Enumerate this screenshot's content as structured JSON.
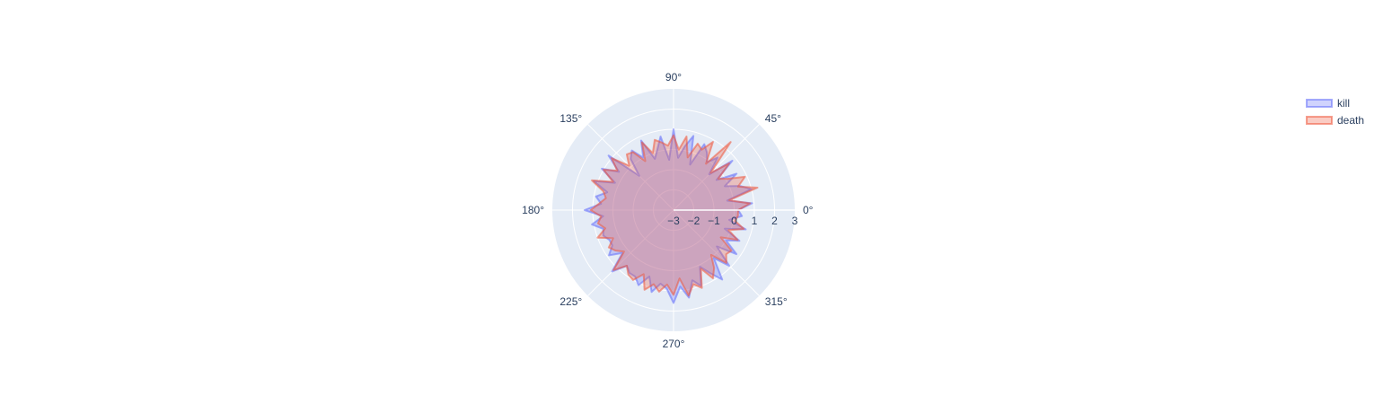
{
  "chart_data": {
    "type": "polar-area",
    "title": "",
    "angular_axis": {
      "tick_labels": [
        "0°",
        "45°",
        "90°",
        "135°",
        "180°",
        "225°",
        "270°",
        "315°"
      ],
      "tick_values_deg": [
        0,
        45,
        90,
        135,
        180,
        225,
        270,
        315
      ],
      "direction": "counterclockwise"
    },
    "radial_axis": {
      "range": [
        -3,
        3
      ],
      "tick_values": [
        -3,
        -2,
        -1,
        0,
        1,
        2,
        3
      ],
      "tick_labels": [
        "−3",
        "−2",
        "−1",
        "0",
        "1",
        "2",
        "3"
      ],
      "angle_deg": 0
    },
    "grid": true,
    "legend": {
      "placement": "top-right",
      "items": [
        {
          "name": "kill",
          "color": "#636efa"
        },
        {
          "name": "death",
          "color": "#ef553b"
        }
      ]
    },
    "colors": {
      "polar_bg": "#e5ecf6",
      "grid": "#ffffff",
      "text": "#2a3f5f"
    },
    "series": [
      {
        "name": "kill",
        "color": "#636efa",
        "fill": "toself",
        "theta": [
          0,
          5,
          10,
          15,
          20,
          25,
          30,
          35,
          40,
          45,
          50,
          55,
          60,
          65,
          70,
          75,
          80,
          85,
          90,
          95,
          100,
          105,
          110,
          115,
          120,
          125,
          130,
          135,
          140,
          145,
          150,
          155,
          160,
          165,
          170,
          175,
          180,
          185,
          190,
          195,
          200,
          205,
          210,
          215,
          220,
          225,
          230,
          235,
          240,
          245,
          250,
          255,
          260,
          265,
          270,
          275,
          280,
          285,
          290,
          295,
          300,
          305,
          310,
          315,
          320,
          325,
          330,
          335,
          340,
          345,
          350,
          355
        ],
        "r": [
          0.2,
          0.9,
          -0.3,
          1.0,
          0.5,
          -0.2,
          0.6,
          -0.4,
          0.8,
          -0.5,
          0.4,
          -0.1,
          0.3,
          0.6,
          -0.6,
          0.8,
          0.2,
          -0.4,
          1.0,
          -0.5,
          0.7,
          0.1,
          -0.3,
          0.8,
          0.0,
          0.6,
          0.3,
          -0.6,
          1.2,
          0.3,
          1.1,
          0.2,
          1.2,
          0.4,
          0.9,
          0.6,
          1.4,
          0.5,
          1.1,
          0.6,
          0.7,
          0.5,
          0.5,
          0.9,
          0.3,
          1.3,
          0.6,
          0.8,
          0.8,
          1.1,
          0.5,
          1.2,
          0.7,
          0.9,
          1.6,
          0.8,
          1.4,
          0.6,
          1.0,
          0.1,
          0.6,
          1.2,
          0.1,
          0.9,
          -0.2,
          0.8,
          0.0,
          0.6,
          -0.3,
          0.7,
          -0.2,
          0.4
        ]
      },
      {
        "name": "death",
        "color": "#ef553b",
        "fill": "toself",
        "theta": [
          0,
          5,
          10,
          15,
          20,
          25,
          30,
          35,
          40,
          45,
          50,
          55,
          60,
          65,
          70,
          75,
          80,
          85,
          90,
          95,
          100,
          105,
          110,
          115,
          120,
          125,
          130,
          135,
          140,
          145,
          150,
          155,
          160,
          165,
          170,
          175,
          180,
          185,
          190,
          195,
          200,
          205,
          210,
          215,
          220,
          225,
          230,
          235,
          240,
          245,
          250,
          255,
          260,
          265,
          270,
          275,
          280,
          285,
          290,
          295,
          300,
          305,
          310,
          315,
          320,
          325,
          330,
          335,
          340,
          345,
          350,
          355
        ],
        "r": [
          0.2,
          0.8,
          -0.2,
          1.3,
          0.4,
          0.9,
          0.1,
          -0.3,
          0.6,
          -0.4,
          1.4,
          -0.2,
          0.9,
          0.3,
          0.5,
          -0.3,
          0.7,
          0.0,
          0.7,
          0.2,
          0.4,
          0.6,
          0.0,
          0.7,
          -0.2,
          0.5,
          0.6,
          0.1,
          1.0,
          0.4,
          1.0,
          0.3,
          1.3,
          0.6,
          0.4,
          0.7,
          1.1,
          0.6,
          0.8,
          0.5,
          1.0,
          0.3,
          0.7,
          0.5,
          0.2,
          1.2,
          0.6,
          0.9,
          1.0,
          0.5,
          1.2,
          0.8,
          1.1,
          0.7,
          1.2,
          0.4,
          1.3,
          0.8,
          1.1,
          0.2,
          0.9,
          0.5,
          -0.1,
          0.7,
          0.4,
          0.5,
          -0.3,
          0.5,
          -0.1,
          0.6,
          0.1,
          0.2
        ]
      }
    ]
  }
}
